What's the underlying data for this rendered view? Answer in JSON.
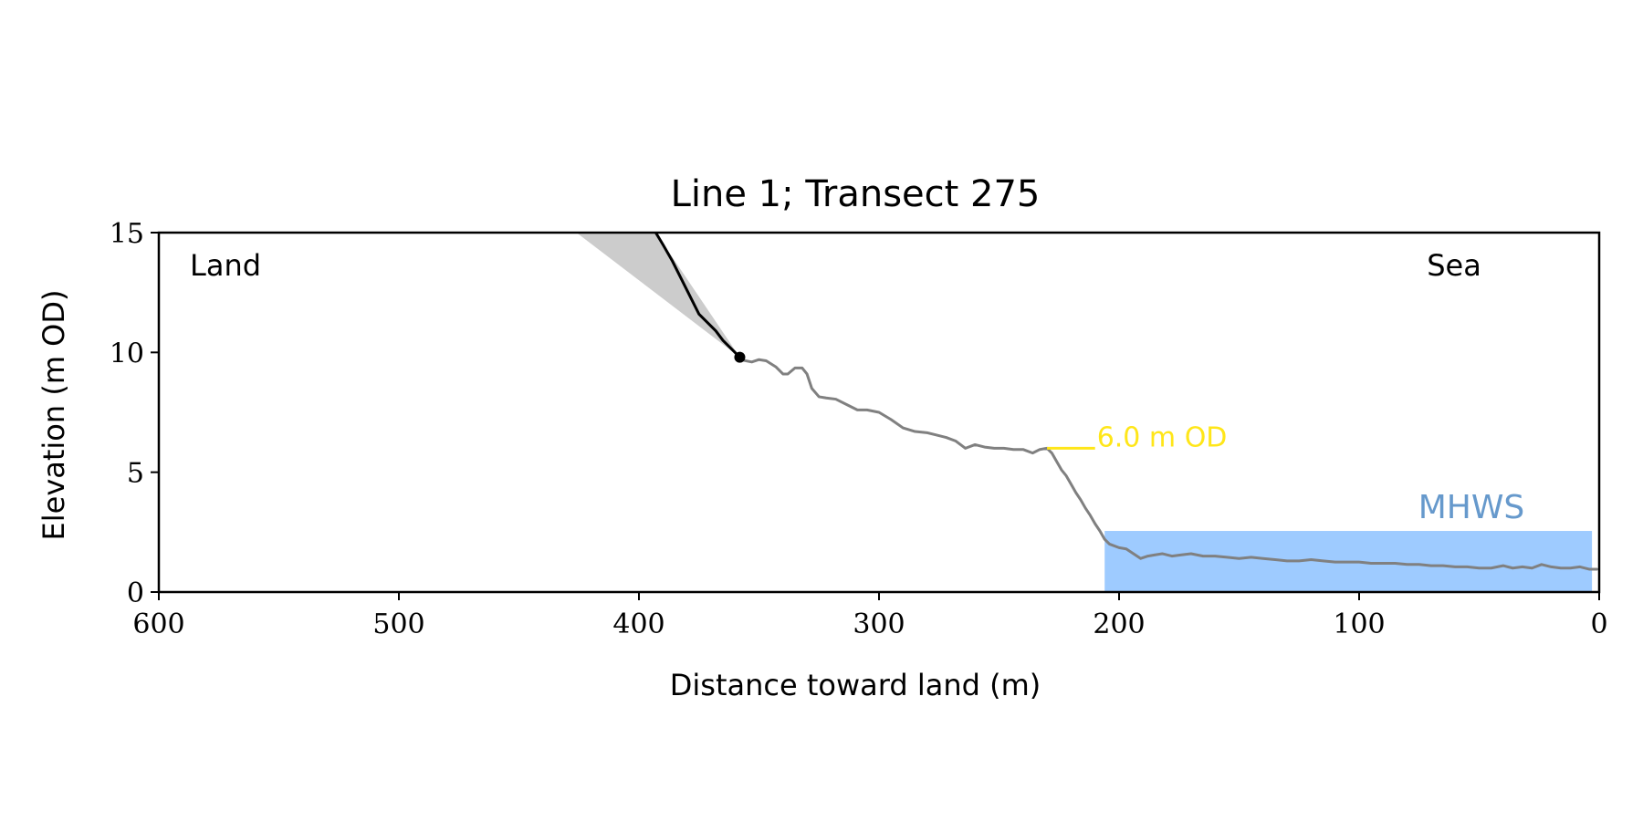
{
  "chart_data": {
    "type": "line",
    "title": "Line 1; Transect 275",
    "xlabel": "Distance toward land (m)",
    "ylabel": "Elevation (m OD)",
    "xlim": [
      600,
      0
    ],
    "ylim": [
      0,
      15
    ],
    "x_ticks": [
      600,
      500,
      400,
      300,
      200,
      100,
      0
    ],
    "y_ticks": [
      0,
      5,
      10,
      15
    ],
    "grid": false,
    "annotations": {
      "land": "Land",
      "sea": "Sea",
      "level_label": "6.0 m OD",
      "mhws_label": "MHWS"
    },
    "colors": {
      "profile": "#808080",
      "cliff": "#000000",
      "wedge": "#cccccc",
      "level": "#ffe619",
      "mhws_fill": "#9ecbff",
      "mhws_text": "#6699cc"
    },
    "level_line": {
      "x": [
        230,
        210
      ],
      "y": 6.0
    },
    "mhws": {
      "x": [
        206,
        3
      ],
      "y_top": 2.55
    },
    "wedge": {
      "x": [
        426,
        393,
        358
      ],
      "y": [
        15,
        15,
        9.8
      ]
    },
    "cliff_top_point": {
      "x": 358,
      "y": 9.8
    },
    "series": [
      {
        "role": "cliff",
        "x": [
          393,
          390,
          386,
          383,
          379,
          375,
          372,
          368,
          365,
          362,
          360,
          358
        ],
        "y": [
          15.0,
          14.5,
          13.8,
          13.2,
          12.4,
          11.6,
          11.3,
          10.9,
          10.5,
          10.2,
          10.0,
          9.8
        ]
      },
      {
        "role": "profile",
        "x": [
          358,
          353,
          350,
          347,
          343,
          340,
          338,
          335,
          332,
          330,
          328,
          325,
          322,
          318,
          313,
          309,
          305,
          300,
          295,
          290,
          285,
          280,
          276,
          272,
          268,
          264,
          260,
          256,
          252,
          248,
          244,
          240,
          236,
          233,
          230,
          228,
          226,
          224,
          222,
          220,
          218,
          216,
          214,
          212,
          210,
          208,
          206,
          204,
          200,
          197,
          194,
          191,
          188,
          185,
          182,
          178,
          174,
          170,
          165,
          160,
          155,
          150,
          145,
          140,
          135,
          130,
          125,
          120,
          115,
          110,
          105,
          100,
          95,
          90,
          85,
          80,
          75,
          70,
          65,
          60,
          55,
          50,
          45,
          40,
          36,
          32,
          28,
          24,
          20,
          16,
          12,
          8,
          4,
          1
        ],
        "y": [
          9.7,
          9.6,
          9.7,
          9.65,
          9.4,
          9.1,
          9.1,
          9.35,
          9.35,
          9.1,
          8.5,
          8.15,
          8.1,
          8.05,
          7.8,
          7.6,
          7.6,
          7.5,
          7.2,
          6.85,
          6.7,
          6.65,
          6.55,
          6.45,
          6.3,
          6.0,
          6.15,
          6.05,
          6.0,
          6.0,
          5.95,
          5.95,
          5.8,
          5.95,
          6.0,
          5.8,
          5.45,
          5.1,
          4.85,
          4.5,
          4.15,
          3.85,
          3.5,
          3.2,
          2.85,
          2.55,
          2.2,
          2.0,
          1.85,
          1.8,
          1.6,
          1.4,
          1.5,
          1.55,
          1.6,
          1.5,
          1.55,
          1.6,
          1.5,
          1.5,
          1.45,
          1.4,
          1.45,
          1.4,
          1.35,
          1.3,
          1.3,
          1.35,
          1.3,
          1.25,
          1.25,
          1.25,
          1.2,
          1.2,
          1.2,
          1.15,
          1.15,
          1.1,
          1.1,
          1.05,
          1.05,
          1.0,
          1.0,
          1.1,
          1.0,
          1.05,
          1.0,
          1.15,
          1.05,
          1.0,
          1.0,
          1.05,
          0.95,
          0.95
        ]
      }
    ]
  }
}
